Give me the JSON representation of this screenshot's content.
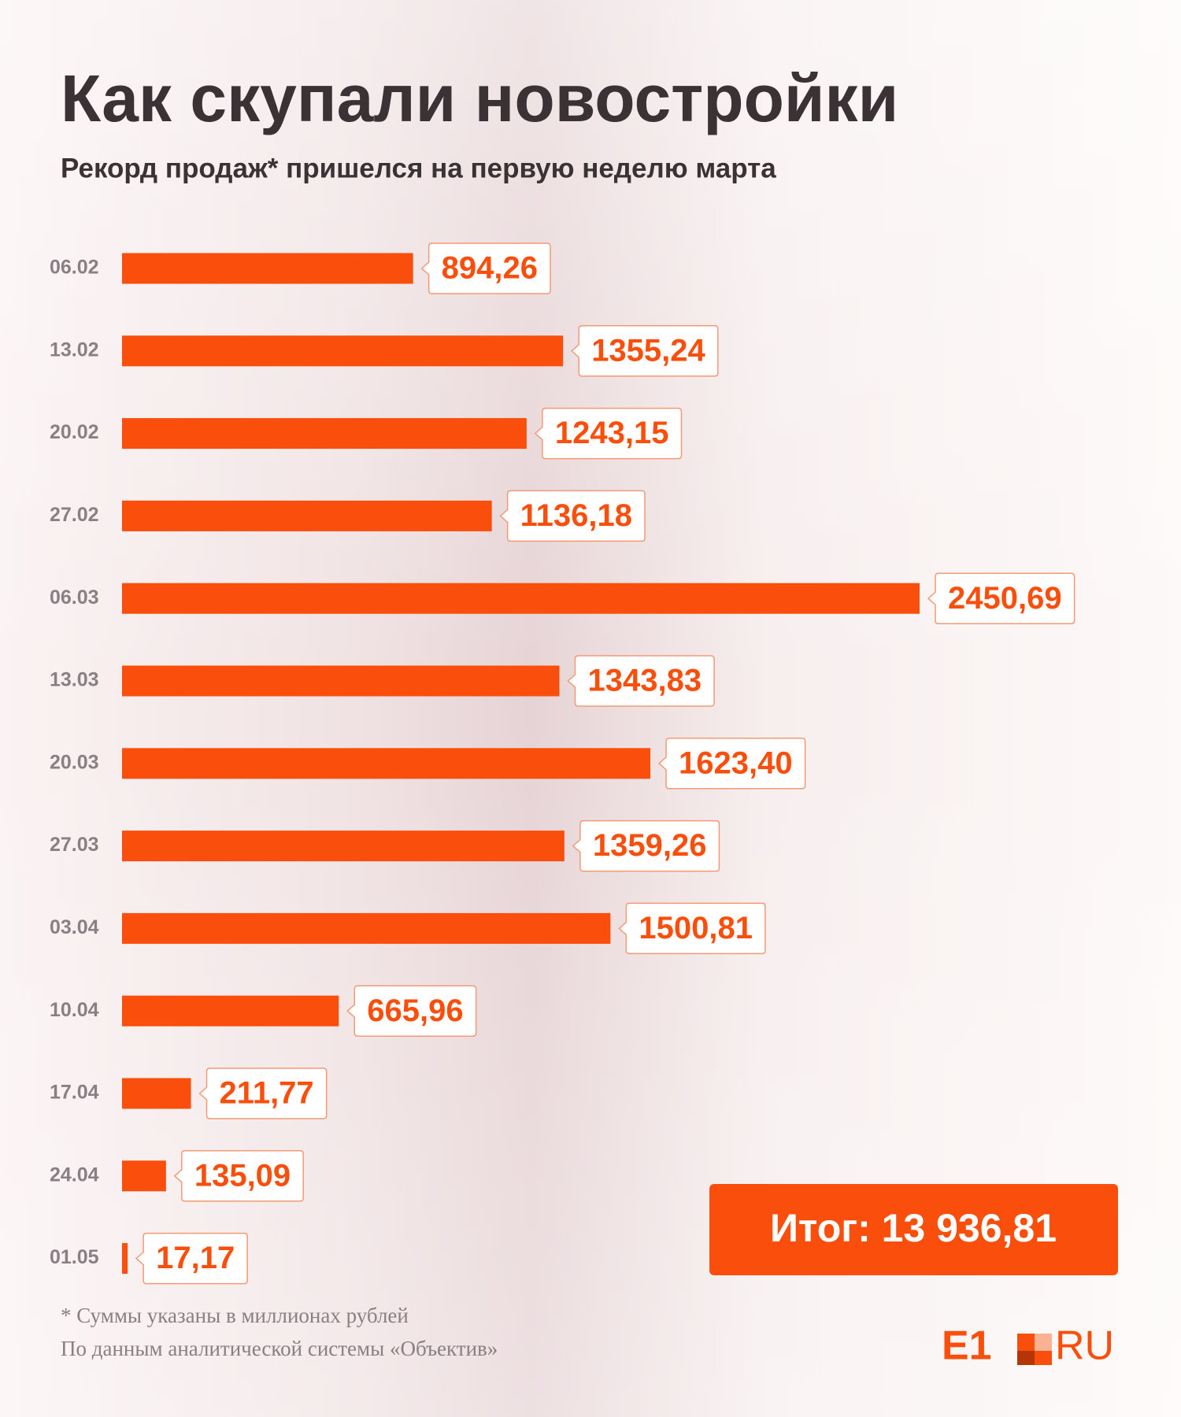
{
  "chart_data": {
    "type": "bar",
    "orientation": "horizontal",
    "title": "Как скупали новостройки",
    "subtitle": "Рекорд продаж* пришелся на первую неделю марта",
    "categories": [
      "06.02",
      "13.02",
      "20.02",
      "27.02",
      "06.03",
      "13.03",
      "20.03",
      "27.03",
      "03.04",
      "10.04",
      "17.04",
      "24.04",
      "01.05"
    ],
    "values": [
      894.26,
      1355.24,
      1243.15,
      1136.18,
      2450.69,
      1343.83,
      1623.4,
      1359.26,
      1500.81,
      665.96,
      211.77,
      135.09,
      17.17
    ],
    "value_labels": [
      "894,26",
      "1355,24",
      "1243,15",
      "1136,18",
      "2450,69",
      "1343,83",
      "1623,40",
      "1359,26",
      "1500,81",
      "665,96",
      "211,77",
      "135,09",
      "17,17"
    ],
    "color": "#fa4f0c",
    "total_label": "Итог: 13 936,81",
    "footnotes": [
      "* Суммы указаны в миллионах рублей",
      "По данным аналитической системы «Объектив»"
    ],
    "logo": {
      "left": "E1",
      "right": "RU"
    }
  }
}
